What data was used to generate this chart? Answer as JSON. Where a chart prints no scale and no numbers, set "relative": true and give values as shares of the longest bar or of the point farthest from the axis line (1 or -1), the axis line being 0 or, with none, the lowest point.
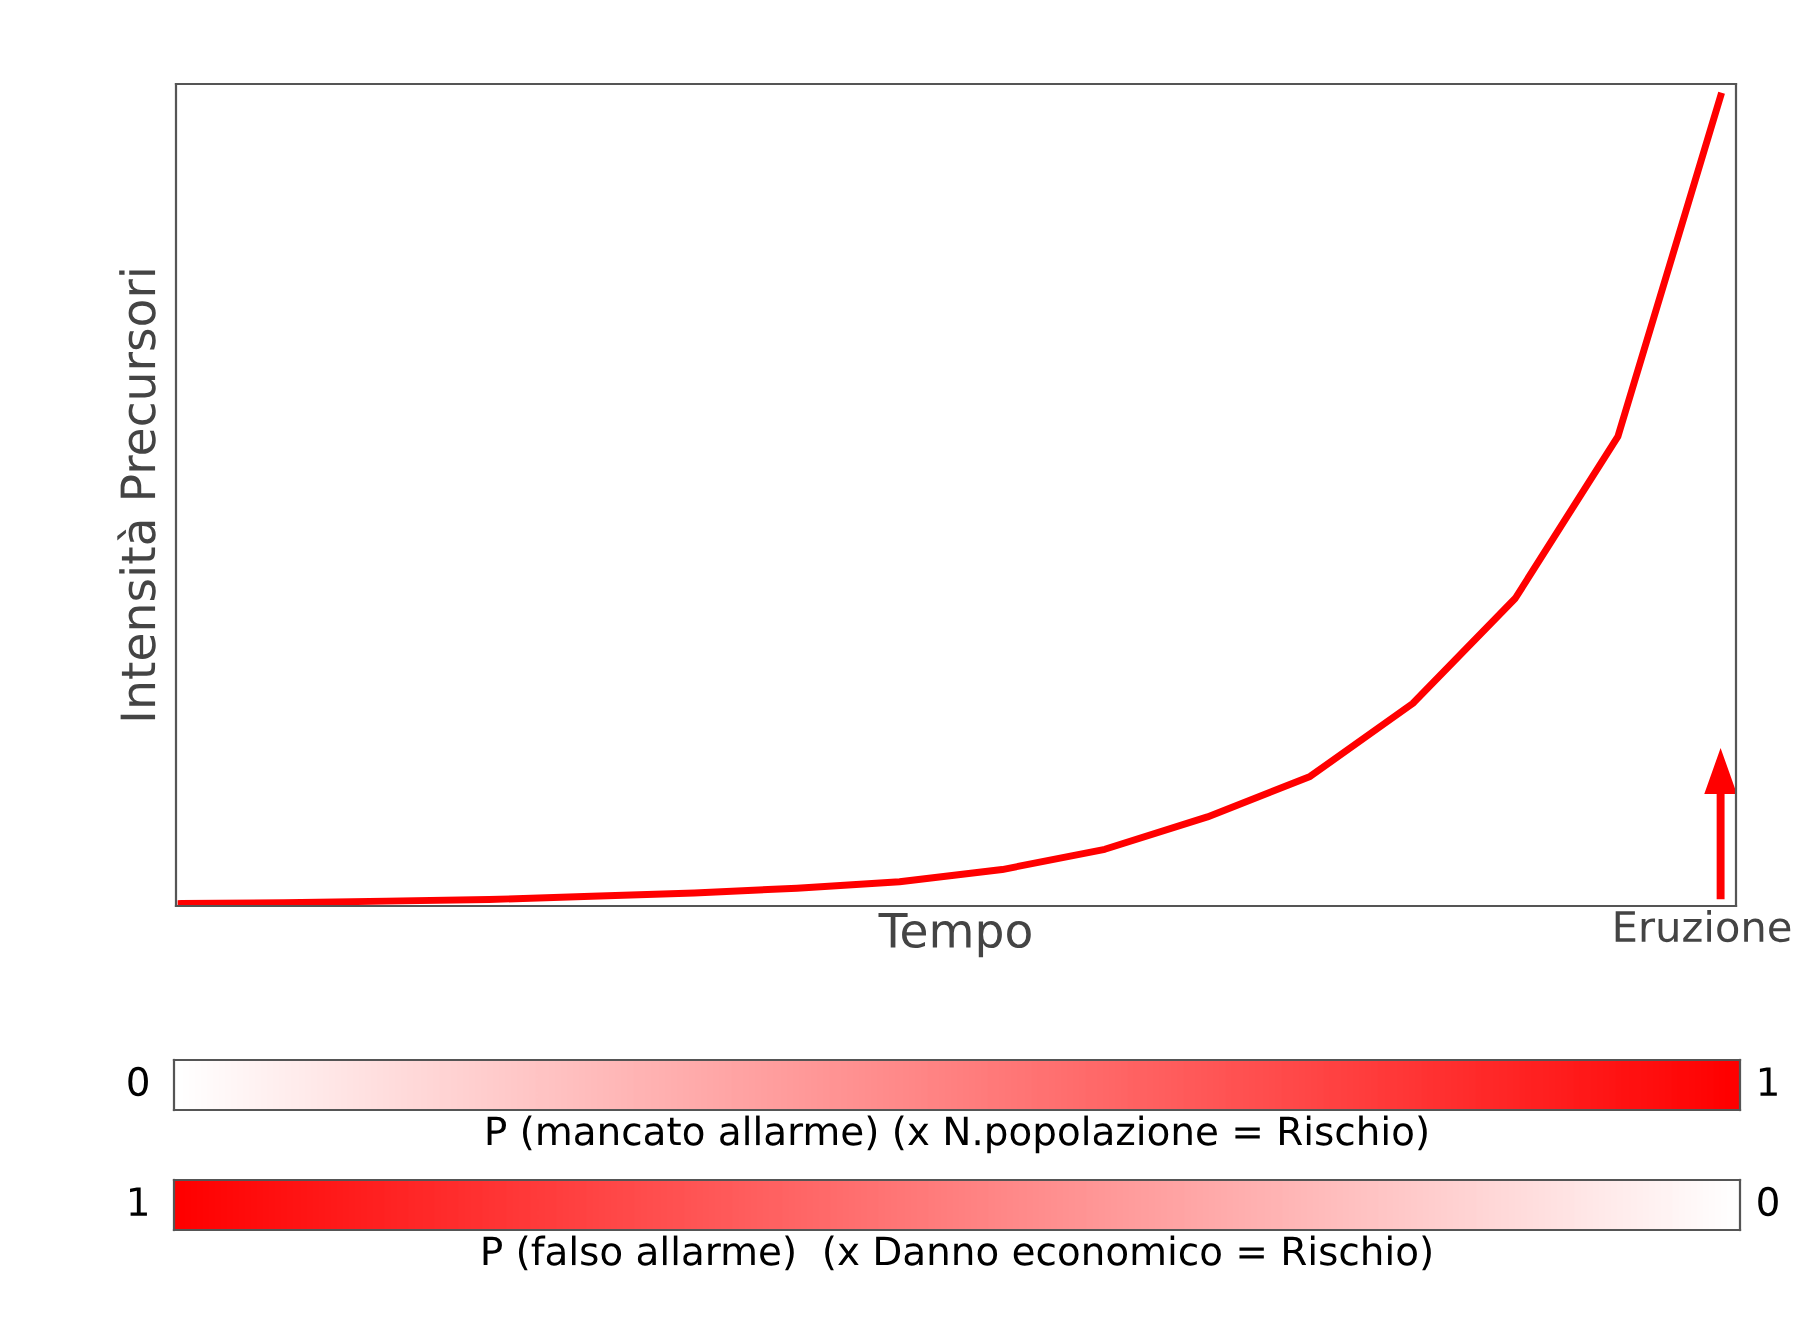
{
  "chart_data": [
    {
      "type": "line",
      "relative": true,
      "ylabel": "Intensità Precursori",
      "xlabel": "Tempo",
      "annotations": [
        "Eruzione"
      ],
      "categories": [
        null,
        null,
        null,
        null,
        null,
        null,
        null,
        null,
        null,
        null,
        null,
        null,
        null,
        null,
        null,
        null
      ],
      "series": [
        {
          "color": "#ff0000",
          "values": [
            0.003,
            0.004,
            0.006,
            0.008,
            0.012,
            0.016,
            0.022,
            0.03,
            0.045,
            0.07,
            0.11,
            0.16,
            0.25,
            0.38,
            0.58,
            1
          ]
        }
      ]
    },
    {
      "type": "other",
      "xlabel": "P (mancato allarme) (x N.popolazione = Rischio)",
      "annotations": [
        "0",
        "1"
      ],
      "colors": [
        "#ffffff",
        "#ff0000"
      ]
    },
    {
      "type": "other",
      "xlabel": "P (falso allarme)  (x Danno economico = Rischio)",
      "annotations": [
        "1",
        "0"
      ],
      "colors": [
        "#ff0000",
        "#ffffff"
      ]
    }
  ]
}
